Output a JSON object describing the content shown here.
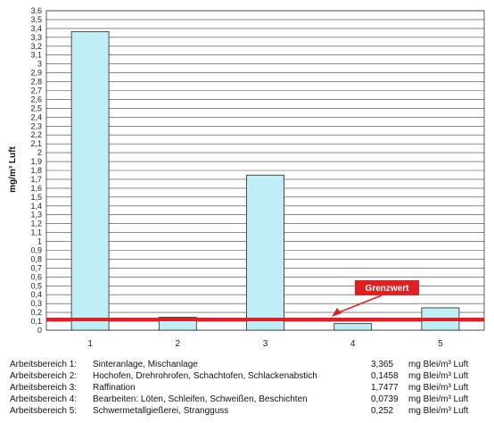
{
  "chart_data": {
    "type": "bar",
    "categories": [
      "1",
      "2",
      "3",
      "4",
      "5"
    ],
    "values": [
      3.365,
      0.1458,
      1.7477,
      0.0739,
      0.252
    ],
    "ylabel": "mg/m³ Luft",
    "ylim": [
      0,
      3.6
    ],
    "yticks": [
      "0",
      "0,1",
      "0,2",
      "0,3",
      "0,4",
      "0,5",
      "0,6",
      "0,7",
      "0,8",
      "0,9",
      "1",
      "1,1",
      "1,2",
      "1,3",
      "1,4",
      "1,5",
      "1,6",
      "1,7",
      "1,8",
      "1,9",
      "2",
      "2,1",
      "2,2",
      "2,3",
      "2,4",
      "2,5",
      "2,6",
      "2,7",
      "2,8",
      "2,9",
      "3",
      "3,1",
      "3,2",
      "3,3",
      "3,4",
      "3,5",
      "3,6"
    ],
    "grid": true,
    "bar_color": "#bfeef6",
    "threshold": {
      "label": "Grenzwert",
      "value": 0.1,
      "color": "#e02020"
    }
  },
  "legend": [
    {
      "label": "Arbeitsbereich 1:",
      "description": "Sinteranlage, Mischanlage",
      "value": "3,365",
      "unit": "mg Blei/m³ Luft"
    },
    {
      "label": "Arbeitsbereich 2:",
      "description": "Hochofen, Drehrohrofen, Schachtofen, Schlackenabstich",
      "value": "0,1458",
      "unit": "mg Blei/m³ Luft"
    },
    {
      "label": "Arbeitsbereich 3:",
      "description": "Raffination",
      "value": "1,7477",
      "unit": "mg Blei/m³ Luft"
    },
    {
      "label": "Arbeitsbereich 4:",
      "description": "Bearbeiten: Löten, Schleifen, Schweißen, Beschichten",
      "value": "0,0739",
      "unit": "mg Blei/m³ Luft"
    },
    {
      "label": "Arbeitsbereich 5:",
      "description": "Schwermetallgießerei, Strangguss",
      "value": "0,252",
      "unit": "mg Blei/m³ Luft"
    }
  ]
}
